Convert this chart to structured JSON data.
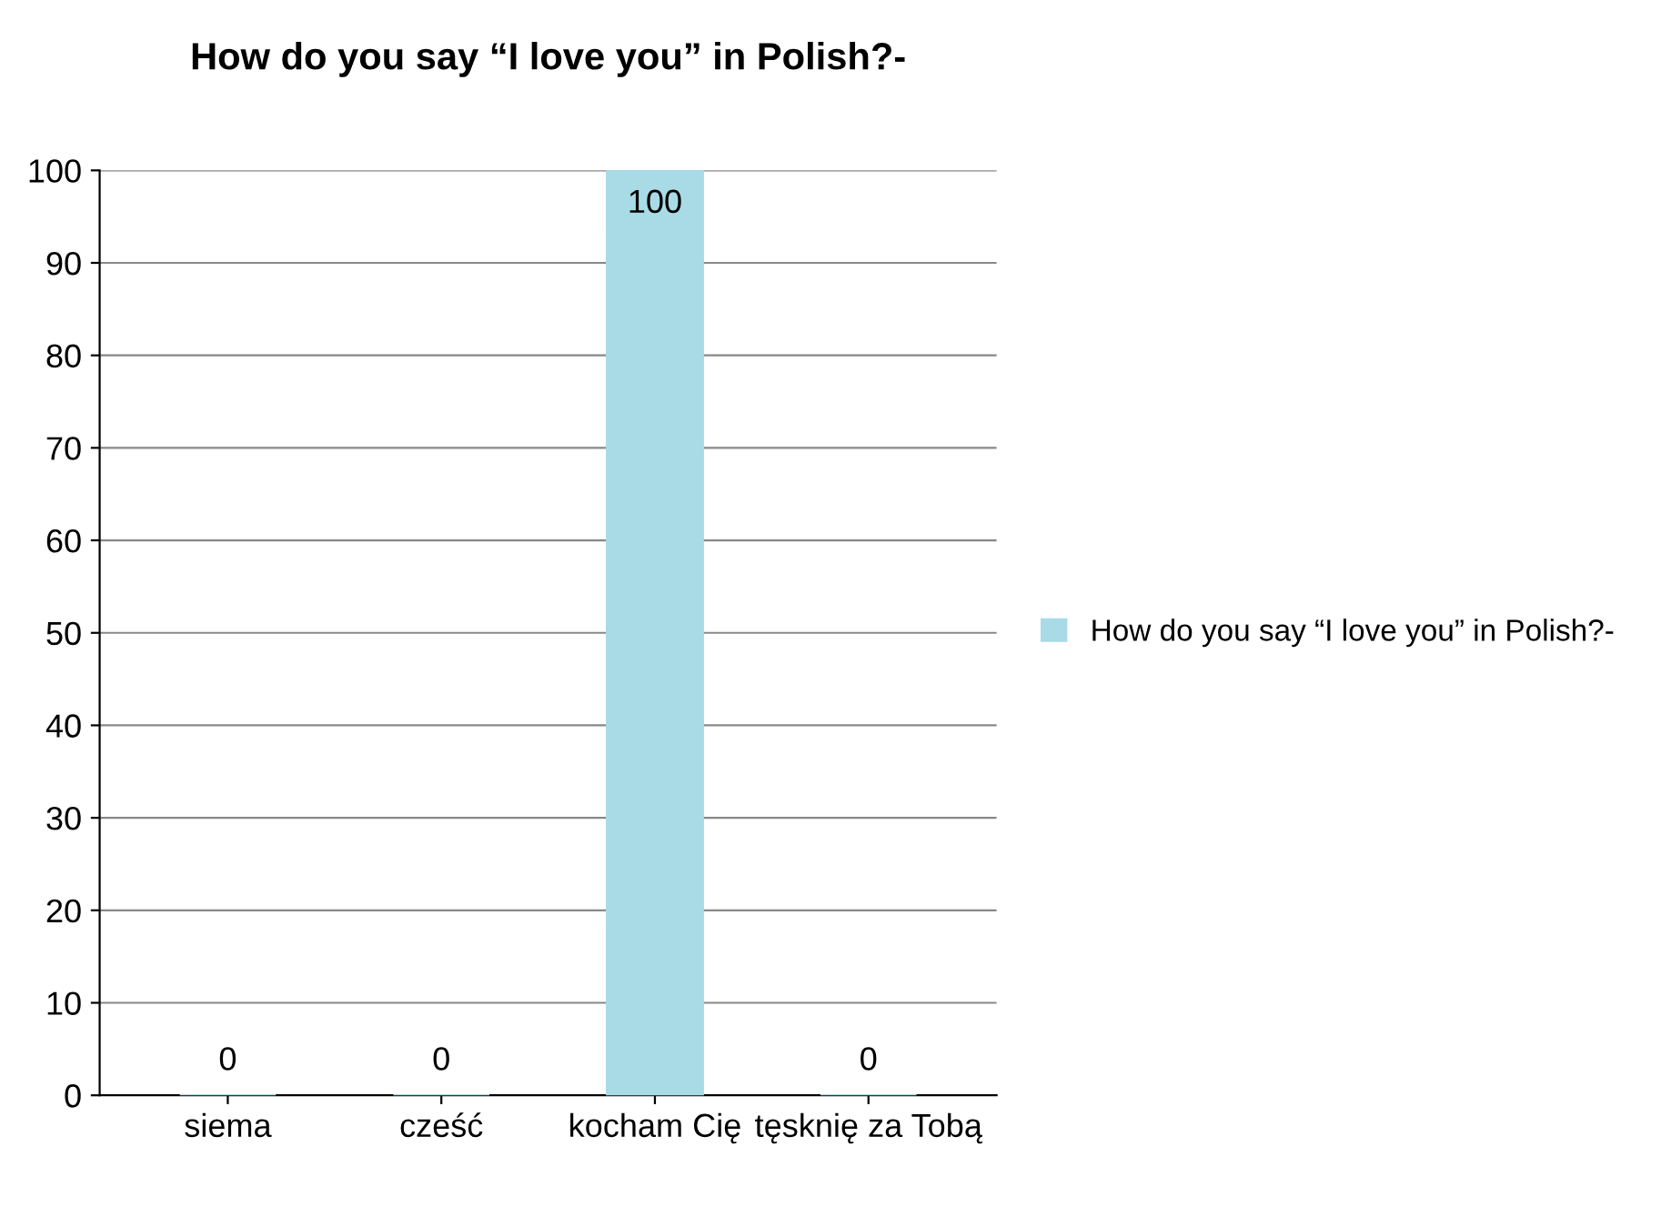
{
  "chart_data": {
    "type": "bar",
    "title": "How do you say “I love you” in Polish?-",
    "categories": [
      "siema",
      "cześć",
      "kocham Cię",
      "tęsknię za Tobą"
    ],
    "series": [
      {
        "name": "How do you say “I love you” in Polish?-",
        "color": "#a8dbe6",
        "values": [
          0,
          0,
          100,
          0
        ]
      }
    ],
    "ylim": [
      0,
      100
    ],
    "yticks": [
      0,
      10,
      20,
      30,
      40,
      50,
      60,
      70,
      80,
      90,
      100
    ],
    "grid": "y",
    "legend": "right",
    "data_labels": true
  }
}
